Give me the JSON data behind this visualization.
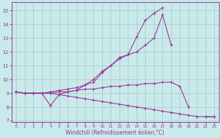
{
  "x": [
    0,
    1,
    2,
    3,
    4,
    5,
    6,
    7,
    8,
    9,
    10,
    11,
    12,
    13,
    14,
    15,
    16,
    17,
    18,
    19,
    20,
    21,
    22,
    23
  ],
  "l1_y": [
    9.1,
    9.0,
    9.0,
    9.0,
    8.1,
    8.9,
    9.1,
    9.2,
    9.6,
    10.0,
    10.6,
    11.0,
    11.6,
    11.8,
    13.1,
    14.3,
    14.8,
    15.2,
    null,
    null,
    null,
    null,
    null,
    null
  ],
  "l2_y": [
    9.1,
    9.0,
    9.0,
    9.0,
    9.1,
    9.2,
    9.3,
    9.4,
    9.6,
    9.8,
    10.5,
    11.0,
    11.5,
    11.8,
    12.0,
    12.5,
    13.0,
    14.7,
    12.5,
    null,
    null,
    null,
    null,
    null
  ],
  "l3_y": [
    9.1,
    9.0,
    9.0,
    9.0,
    9.0,
    9.1,
    9.1,
    9.2,
    9.3,
    9.3,
    9.4,
    9.5,
    9.5,
    9.6,
    9.6,
    9.7,
    9.7,
    9.8,
    9.8,
    9.5,
    8.0,
    null,
    7.3,
    7.3
  ],
  "l4_y": [
    9.1,
    9.0,
    9.0,
    9.0,
    9.0,
    8.9,
    8.8,
    8.7,
    8.6,
    8.5,
    8.4,
    8.3,
    8.2,
    8.1,
    8.0,
    7.9,
    7.8,
    7.7,
    7.6,
    7.5,
    7.4,
    7.3,
    7.3,
    7.3
  ],
  "line_color": "#993399",
  "bg_color": "#c8eaea",
  "grid_color": "#b0c8c8",
  "xlim": [
    -0.5,
    23.5
  ],
  "ylim": [
    6.9,
    15.6
  ],
  "yticks": [
    7,
    8,
    9,
    10,
    11,
    12,
    13,
    14,
    15
  ],
  "xticks": [
    0,
    1,
    2,
    3,
    4,
    5,
    6,
    7,
    8,
    9,
    10,
    11,
    12,
    13,
    14,
    15,
    16,
    17,
    18,
    19,
    20,
    21,
    22,
    23
  ],
  "xlabel": "Windchill (Refroidissement éolien,°C)"
}
